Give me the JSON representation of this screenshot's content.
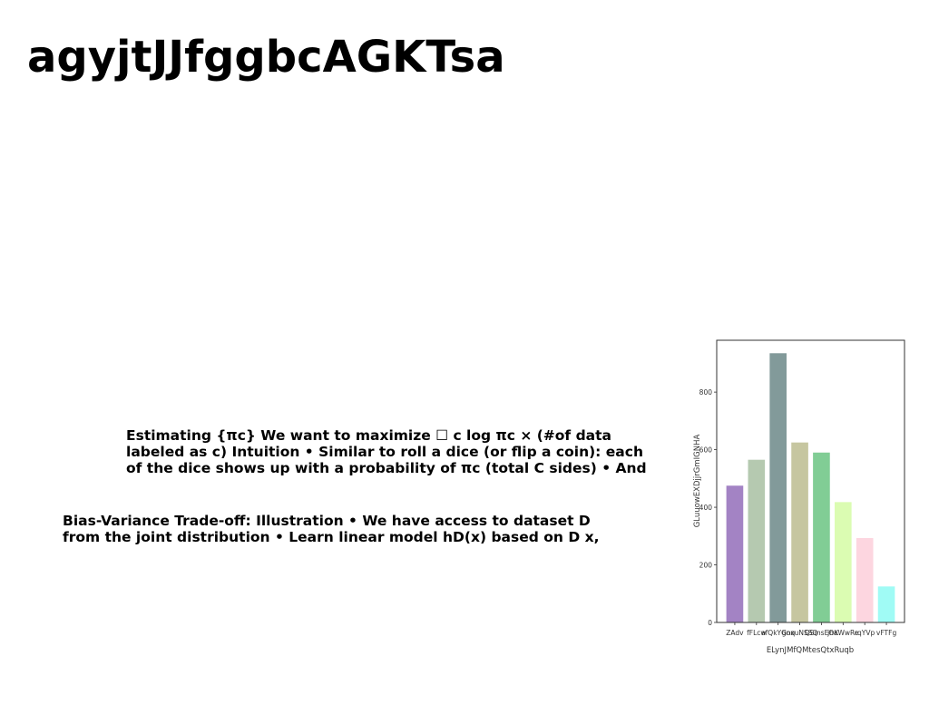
{
  "title": "agyjtJJfggbcAGKTsa",
  "paragraph1": {
    "lines": [
      "Estimating {πc} We want to maximize ☐ c log πc × (#of data",
      "labeled as c) Intuition • Similar to roll a dice (or flip a coin): each",
      "of the dice shows up with a probability of πc (total C sides) • And"
    ]
  },
  "paragraph2": {
    "lines": [
      "Bias-Variance Trade-off: Illustration • We have access to dataset D",
      "from the joint distribution • Learn linear model hD(x) based on D x,"
    ]
  },
  "chart_data": {
    "type": "bar",
    "categories": [
      "ZAdv",
      "fFLcw",
      "afQkYGoq",
      "gnxuNSSQ",
      "QSmsEOK",
      "jhaWwRe",
      "rqYVp",
      "vFTFg"
    ],
    "values": [
      475,
      565,
      935,
      625,
      590,
      418,
      293,
      125
    ],
    "colors": [
      "#a383c4",
      "#b5c9b0",
      "#829a9a",
      "#c6c6a0",
      "#81cd95",
      "#dbfcb2",
      "#fdd6e0",
      "#a0fbf5"
    ],
    "xlabel": "ELynJMfQMtesQtxRuqb",
    "ylabel": "GLuuowEXDjjrGmIGNHA",
    "ylim": [
      0,
      980
    ],
    "yticks": [
      0,
      200,
      400,
      600,
      800
    ],
    "grid": false
  }
}
